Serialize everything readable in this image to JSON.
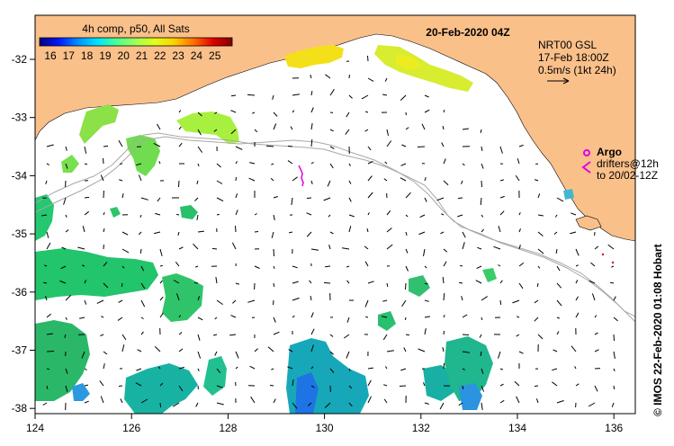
{
  "colorbar": {
    "title": "4h comp, p50, All Sats",
    "labels": [
      "16",
      "17",
      "18",
      "19",
      "20",
      "21",
      "22",
      "23",
      "24",
      "25"
    ],
    "colors": [
      "#00007f",
      "#0018ff",
      "#0090ff",
      "#00e4ff",
      "#4aff90",
      "#a0ff56",
      "#e0ff18",
      "#ffd000",
      "#ff7000",
      "#e40000",
      "#800000"
    ]
  },
  "timestamp": "20-Feb-2020 04Z",
  "current_info": {
    "line1": "NRT00 GSL",
    "line2": "17-Feb 18:00Z",
    "line3": "0.5m/s (1kt 24h)"
  },
  "argo": {
    "label": "Argo",
    "line1": "drifters@12h",
    "line2": "to 20/02-12Z"
  },
  "credit": "© IMOS 22-Feb-2020 01:08 Hobart",
  "axes": {
    "x_ticks": [
      "124",
      "126",
      "128",
      "130",
      "132",
      "134",
      "136"
    ],
    "y_ticks": [
      "-32",
      "-33",
      "-34",
      "-35",
      "-36",
      "-37",
      "-38"
    ]
  },
  "colors": {
    "land": "#fac08a",
    "ocean": "#ffffff",
    "argo": "#e000e0",
    "depth_contour": "#a0a0a0"
  }
}
